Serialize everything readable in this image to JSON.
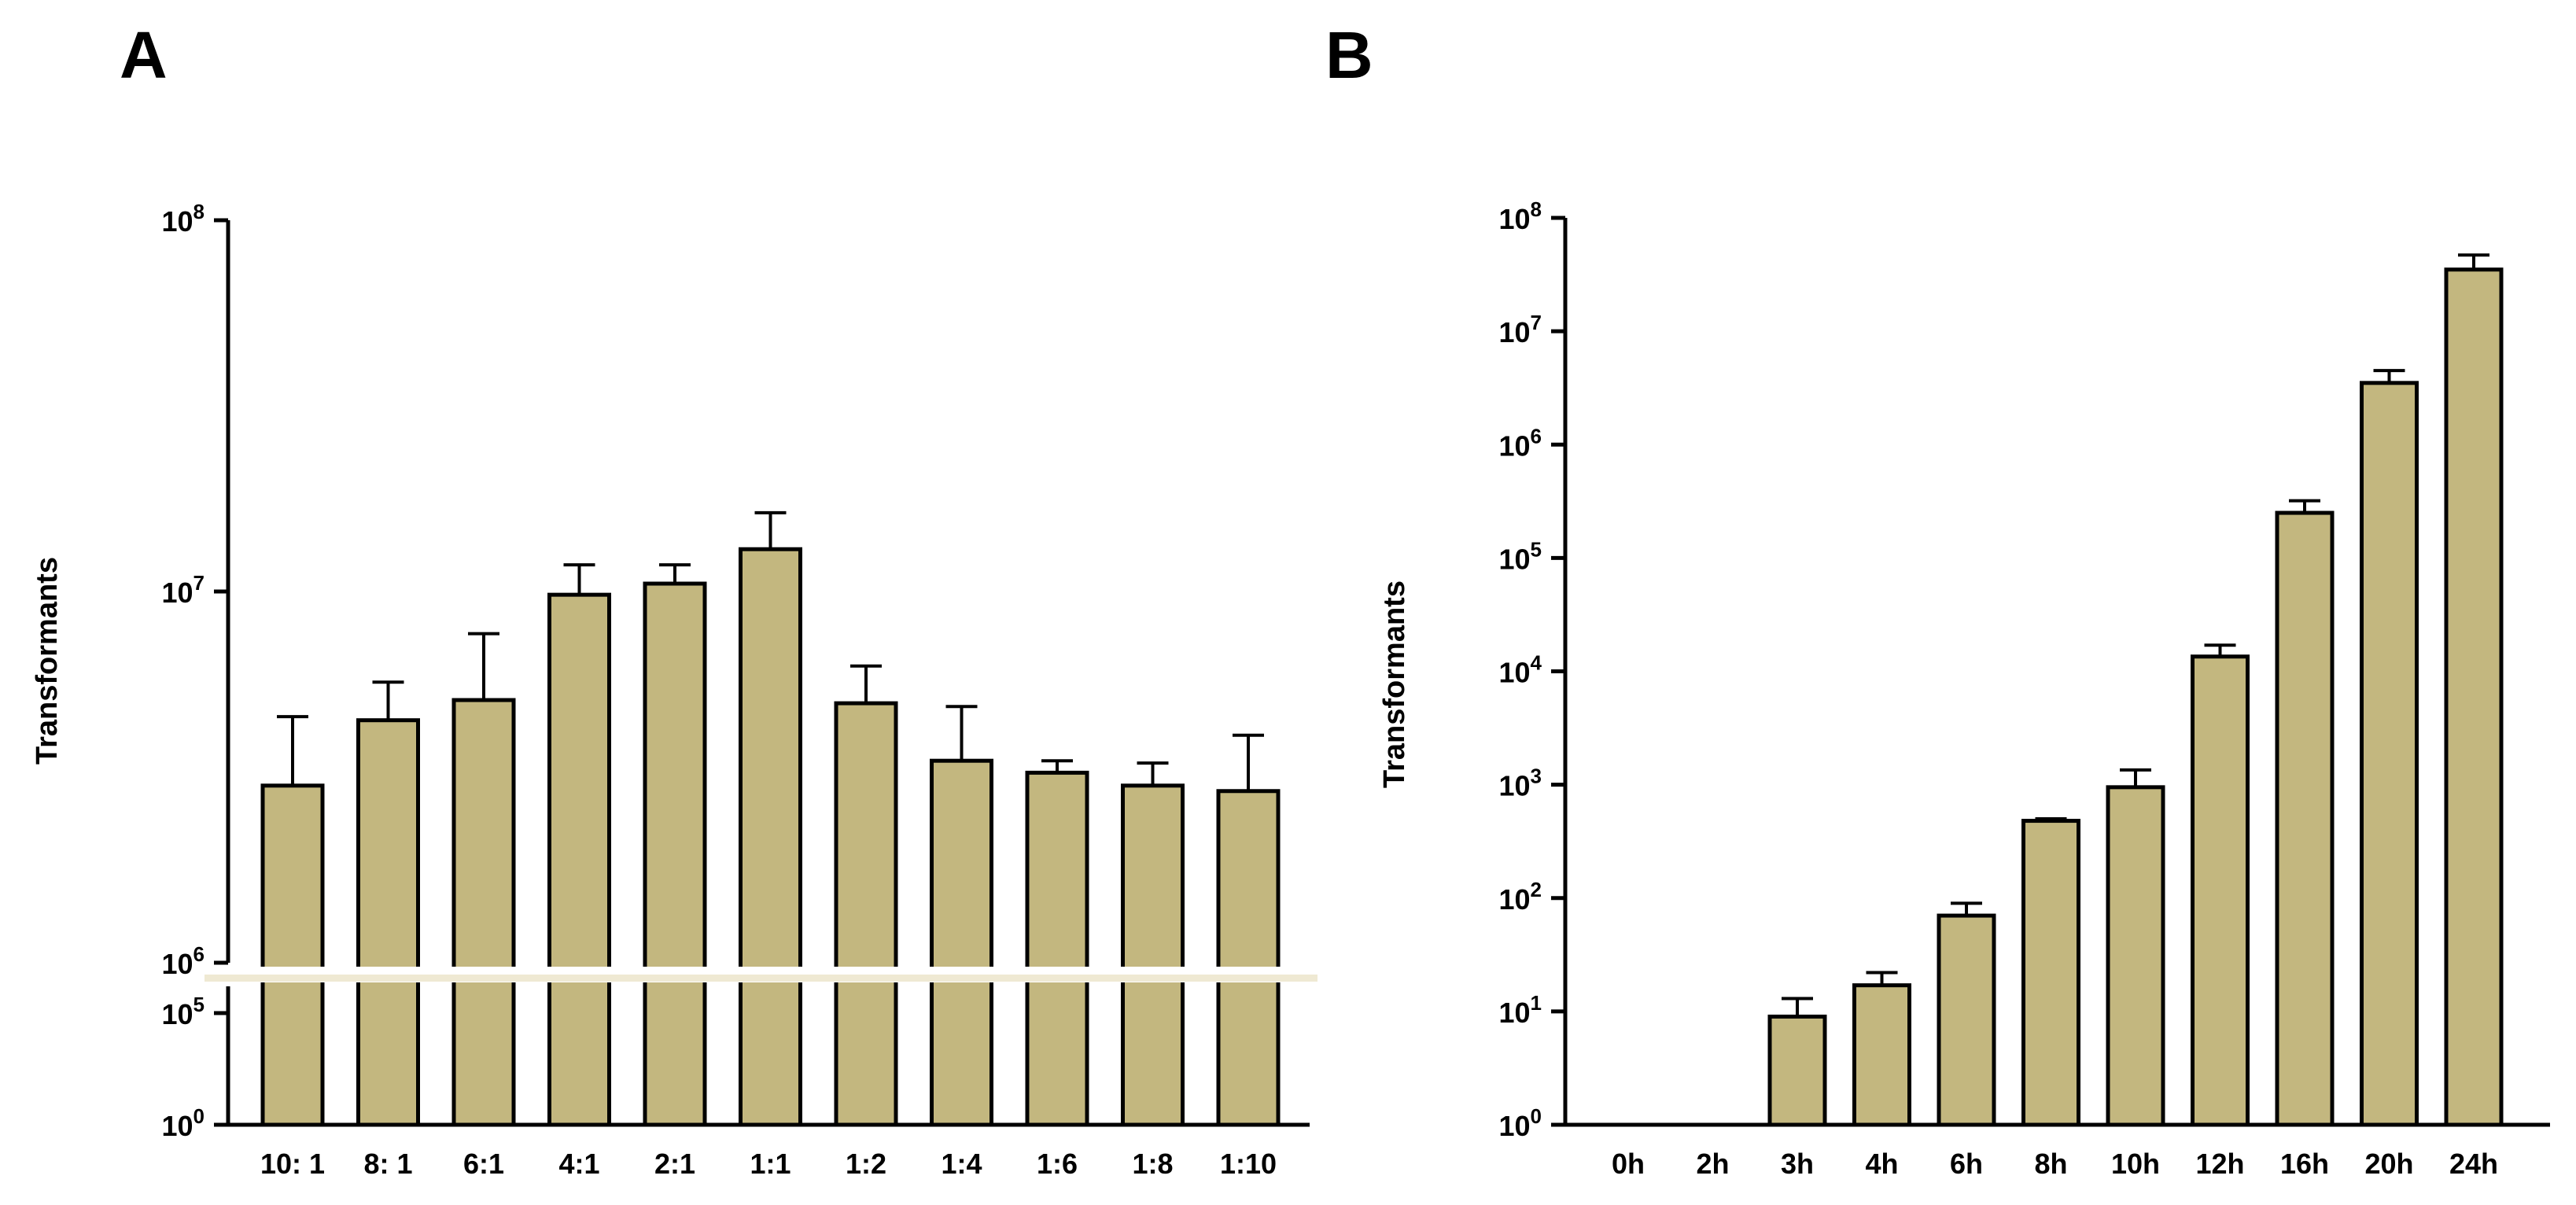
{
  "panels": {
    "a_label": "A",
    "b_label": "B"
  },
  "colors": {
    "bar_fill": "#c3b77f",
    "bar_stroke": "#000000",
    "axis": "#000000"
  },
  "chart_data": [
    {
      "type": "bar",
      "panel": "A",
      "ylabel": "Transformants",
      "xlabel": "",
      "yscale": "log-broken",
      "categories": [
        "10: 1",
        "8: 1",
        "6:1",
        "4:1",
        "2:1",
        "1:1",
        "1:2",
        "1:4",
        "1:6",
        "1:8",
        "1:10"
      ],
      "values": [
        3000000,
        4500000,
        5100000,
        9800000,
        10500000,
        13000000,
        5000000,
        3500000,
        3250000,
        3000000,
        2900000
      ],
      "error_upper": [
        4600000,
        5700000,
        7700000,
        11800000,
        11800000,
        16300000,
        6300000,
        4900000,
        3500000,
        3450000,
        4100000
      ],
      "y_ticks": [
        {
          "base": "10",
          "exp": "0"
        },
        {
          "base": "10",
          "exp": "5"
        },
        {
          "base": "10",
          "exp": "6"
        },
        {
          "base": "10",
          "exp": "7"
        },
        {
          "base": "10",
          "exp": "8"
        }
      ],
      "ylim": [
        1,
        100000000
      ],
      "axis_break": "between 10^5 and 10^6"
    },
    {
      "type": "bar",
      "panel": "B",
      "ylabel": "Transformants",
      "xlabel": "",
      "yscale": "log",
      "categories": [
        "0h",
        "2h",
        "3h",
        "4h",
        "6h",
        "8h",
        "10h",
        "12h",
        "16h",
        "20h",
        "24h"
      ],
      "values": [
        1,
        1,
        9,
        17,
        70,
        480,
        950,
        13500,
        250000,
        3500000,
        35000000
      ],
      "error_upper": [
        1,
        1,
        13,
        22,
        90,
        500,
        1350,
        17000,
        320000,
        4500000,
        47000000
      ],
      "y_ticks": [
        {
          "base": "10",
          "exp": "0"
        },
        {
          "base": "10",
          "exp": "1"
        },
        {
          "base": "10",
          "exp": "2"
        },
        {
          "base": "10",
          "exp": "3"
        },
        {
          "base": "10",
          "exp": "4"
        },
        {
          "base": "10",
          "exp": "5"
        },
        {
          "base": "10",
          "exp": "6"
        },
        {
          "base": "10",
          "exp": "7"
        },
        {
          "base": "10",
          "exp": "8"
        }
      ],
      "ylim": [
        1,
        100000000
      ]
    }
  ]
}
